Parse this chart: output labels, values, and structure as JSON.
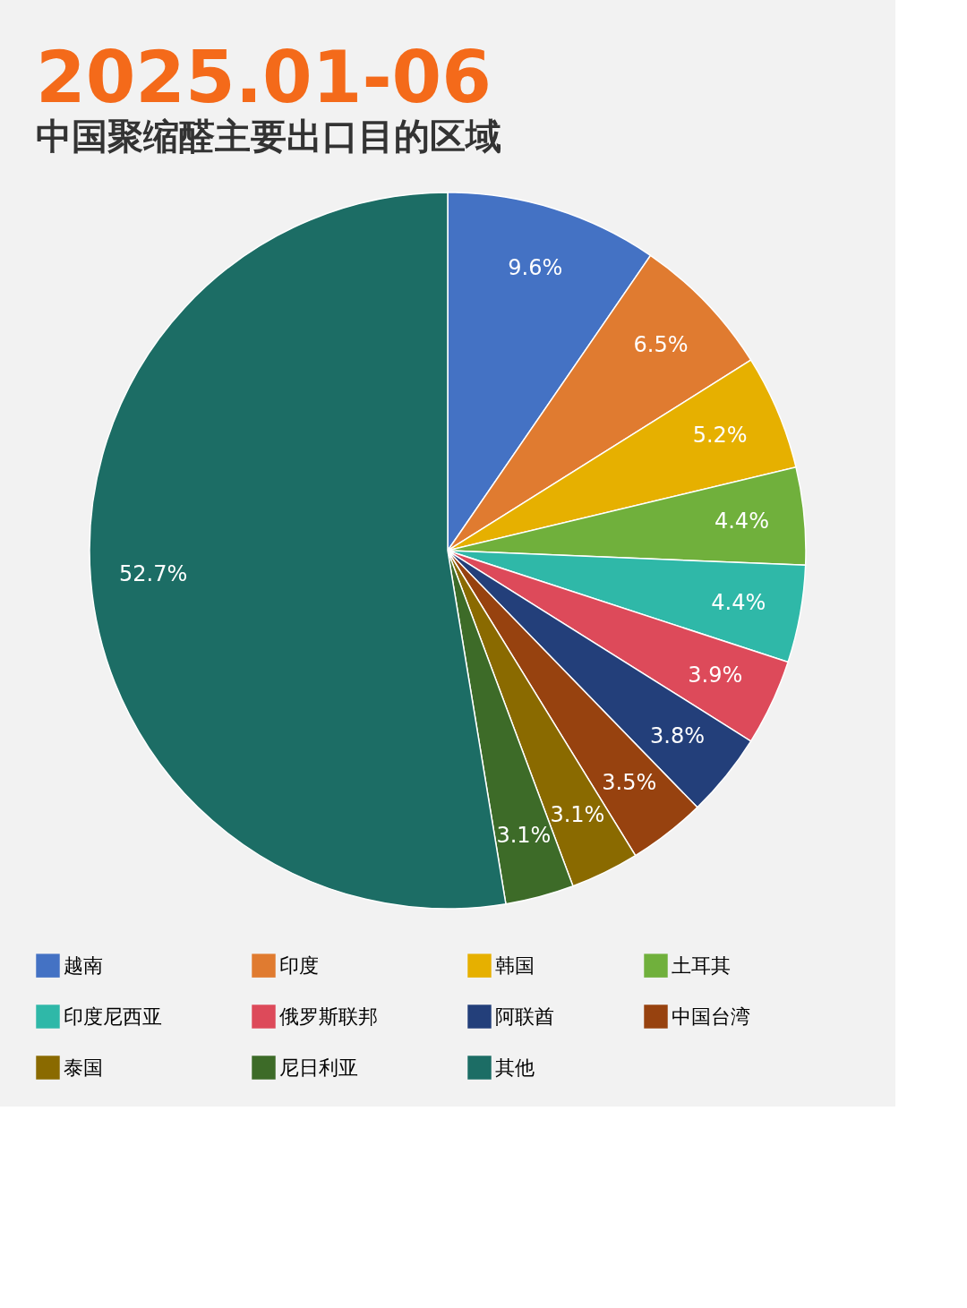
{
  "chart_data": {
    "type": "pie",
    "title": "2025.01-06",
    "subtitle": "中国聚缩醛主要出口目的区域",
    "categories": [
      "越南",
      "印度",
      "韩国",
      "土耳其",
      "印度尼西亚",
      "俄罗斯联邦",
      "阿联酋",
      "中国台湾",
      "泰国",
      "尼日利亚",
      "其他"
    ],
    "values": [
      9.6,
      6.5,
      5.2,
      4.4,
      4.4,
      3.9,
      3.8,
      3.5,
      3.1,
      3.1,
      52.7
    ],
    "colors": [
      "#4472c4",
      "#e07b30",
      "#e6b000",
      "#70b03c",
      "#2fb8a8",
      "#dd4a5a",
      "#233f7a",
      "#97420f",
      "#8a6a00",
      "#3d6b28",
      "#1c6d65"
    ],
    "value_labels": [
      "9.6%",
      "6.5%",
      "5.2%",
      "4.4%",
      "4.4%",
      "3.9%",
      "3.8%",
      "3.5%",
      "3.1%",
      "3.1%",
      "52.7%"
    ],
    "legend": "bottom"
  }
}
